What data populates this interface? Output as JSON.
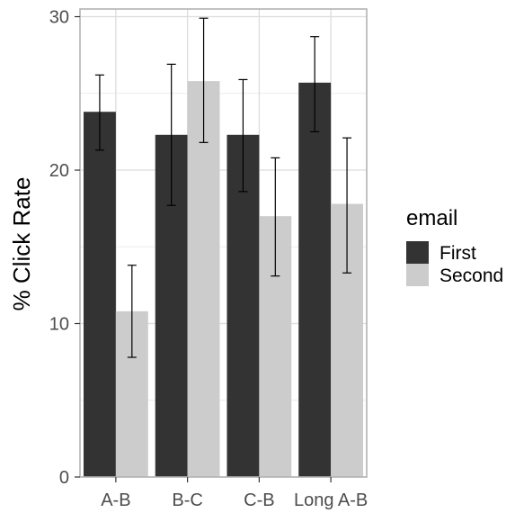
{
  "chart_data": {
    "type": "bar",
    "categories": [
      "A-B",
      "B-C",
      "C-B",
      "Long A-B"
    ],
    "ylabel": "% Click Rate",
    "xlabel": "",
    "ylim": [
      0,
      30.5
    ],
    "yticks": [
      0,
      10,
      20,
      30
    ],
    "grid": true,
    "legend": {
      "title": "email",
      "placement": "right"
    },
    "series": [
      {
        "name": "First",
        "color": "#333333",
        "values": [
          23.8,
          22.3,
          22.3,
          25.7
        ],
        "error_low": [
          21.3,
          17.7,
          18.6,
          22.5
        ],
        "error_high": [
          26.2,
          26.9,
          25.9,
          28.7
        ]
      },
      {
        "name": "Second",
        "color": "#cccccc",
        "values": [
          10.8,
          25.8,
          17.0,
          17.8
        ],
        "error_low": [
          7.8,
          21.8,
          13.1,
          13.3
        ],
        "error_high": [
          13.8,
          29.9,
          20.8,
          22.1
        ]
      }
    ]
  }
}
